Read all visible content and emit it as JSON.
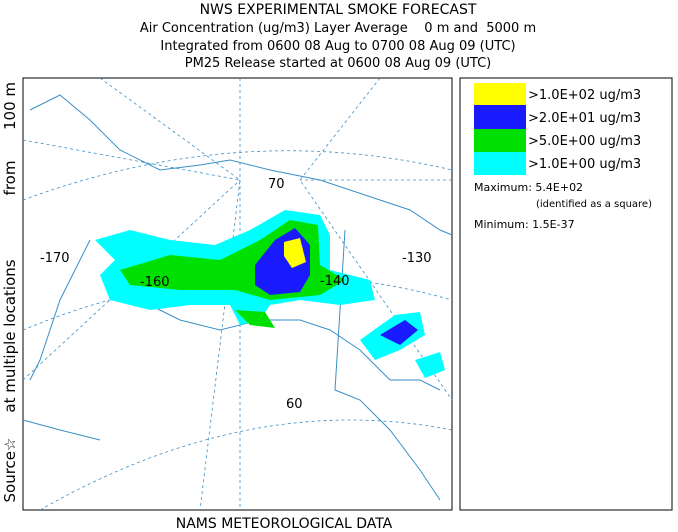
{
  "header": {
    "title": "NWS EXPERIMENTAL SMOKE FORECAST",
    "lines": [
      "Air Concentration (ug/m3) Layer Average    0 m and  5000 m",
      "Integrated from 0600 08 Aug to 0700 08 Aug 09 (UTC)",
      "PM25 Release started at 0600 08 Aug 09 (UTC)"
    ]
  },
  "side_label": [
    "Source☆",
    "at multiple locations",
    "from",
    "100 m"
  ],
  "map": {
    "grid_labels": [
      "-170",
      "-160",
      "70",
      "-140",
      "-130",
      "60"
    ]
  },
  "legend": {
    "entries": [
      ">1.0E+02 ug/m3",
      ">2.0E+01 ug/m3",
      ">5.0E+00 ug/m3",
      ">1.0E+00 ug/m3"
    ],
    "maximum": "Maximum: 5.4E+02",
    "maximum_note": "(identified as a square)",
    "minimum": "Minimum: 1.5E-37"
  },
  "footer": "NAMS METEOROLOGICAL DATA"
}
